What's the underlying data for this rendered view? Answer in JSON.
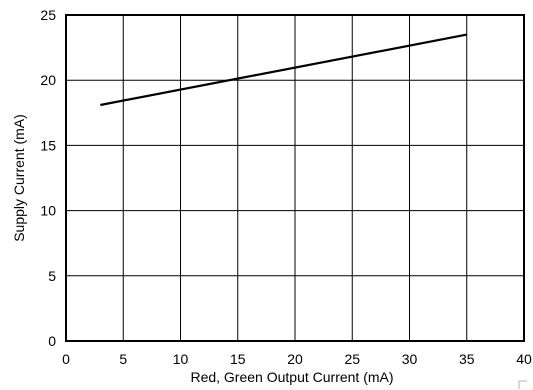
{
  "chart_data": {
    "type": "line",
    "title": "",
    "xlabel": "Red, Green Output Current (mA)",
    "ylabel": "Supply Current (mA)",
    "xlim": [
      0,
      40
    ],
    "ylim": [
      0,
      25
    ],
    "xticks": [
      0,
      5,
      10,
      15,
      20,
      25,
      30,
      35,
      40
    ],
    "yticks": [
      0,
      5,
      10,
      15,
      20,
      25
    ],
    "grid": true,
    "legend": "none",
    "line_color": "#000000",
    "series": [
      {
        "x": [
          3,
          35
        ],
        "y": [
          18.1,
          23.5
        ]
      }
    ]
  }
}
